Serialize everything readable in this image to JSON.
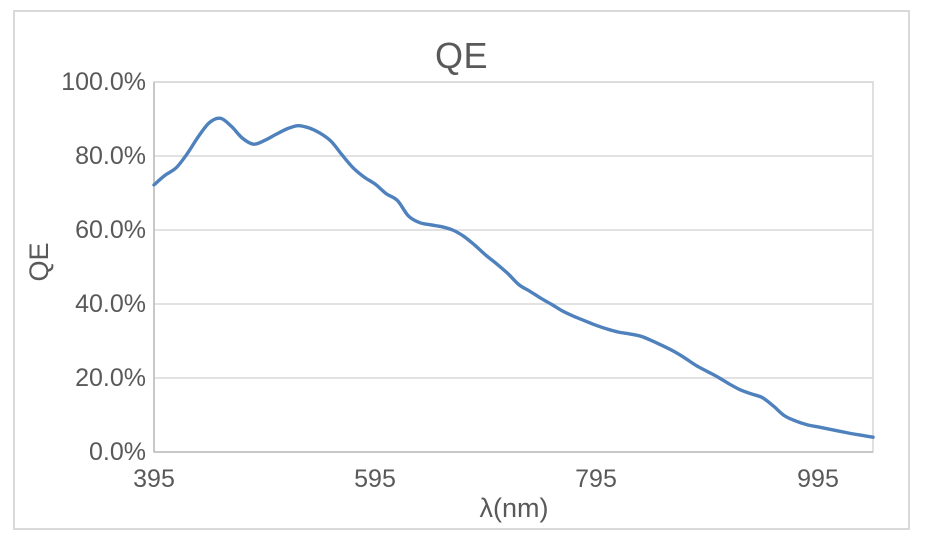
{
  "chart_data": {
    "type": "line",
    "title": "QE",
    "xlabel": "λ(nm)",
    "ylabel": "QE",
    "series_name": "QE",
    "smooth": true,
    "legend": "none",
    "grid": "horizontal-major",
    "xlim": [
      395,
      1045
    ],
    "ylim": [
      0,
      100
    ],
    "y_unit": "percent",
    "x_ticks": [
      {
        "value": 395,
        "label": "395"
      },
      {
        "value": 595,
        "label": "595"
      },
      {
        "value": 795,
        "label": "795"
      },
      {
        "value": 995,
        "label": "995"
      }
    ],
    "y_ticks": [
      {
        "value": 0,
        "label": "0.0%"
      },
      {
        "value": 20,
        "label": "20.0%"
      },
      {
        "value": 40,
        "label": "40.0%"
      },
      {
        "value": 60,
        "label": "60.0%"
      },
      {
        "value": 80,
        "label": "80.0%"
      },
      {
        "value": 100,
        "label": "100.0%"
      }
    ],
    "x": [
      395,
      405,
      415,
      425,
      435,
      445,
      455,
      465,
      475,
      485,
      495,
      505,
      515,
      525,
      535,
      545,
      555,
      565,
      575,
      585,
      595,
      605,
      615,
      625,
      635,
      645,
      655,
      665,
      675,
      685,
      695,
      705,
      715,
      725,
      735,
      745,
      755,
      765,
      775,
      785,
      795,
      805,
      815,
      825,
      835,
      845,
      855,
      865,
      875,
      885,
      895,
      905,
      915,
      925,
      935,
      945,
      955,
      965,
      975,
      985,
      995,
      1005,
      1015,
      1025,
      1035,
      1045
    ],
    "series": [
      {
        "name": "QE",
        "values": [
          72.2,
          74.8,
          76.8,
          80.6,
          85.2,
          89.0,
          90.2,
          88.0,
          84.8,
          83.2,
          84.2,
          85.8,
          87.3,
          88.2,
          87.6,
          86.2,
          84.0,
          80.3,
          76.8,
          74.3,
          72.4,
          69.8,
          68.0,
          63.8,
          62.0,
          61.4,
          60.9,
          60.0,
          58.3,
          55.9,
          53.2,
          50.8,
          48.2,
          45.2,
          43.4,
          41.5,
          39.8,
          38.0,
          36.6,
          35.4,
          34.2,
          33.2,
          32.4,
          31.9,
          31.3,
          30.1,
          28.7,
          27.2,
          25.4,
          23.4,
          21.8,
          20.2,
          18.4,
          16.8,
          15.7,
          14.7,
          12.4,
          9.8,
          8.4,
          7.4,
          6.8,
          6.2,
          5.6,
          5.0,
          4.5,
          4.0
        ]
      }
    ],
    "colors": {
      "line": "#4F81BD",
      "gridline": "#D9D9D9",
      "axis": "#BFBFBF",
      "text": "#595959",
      "frame_border": "#D9D9D9",
      "background": "#FFFFFF"
    }
  }
}
